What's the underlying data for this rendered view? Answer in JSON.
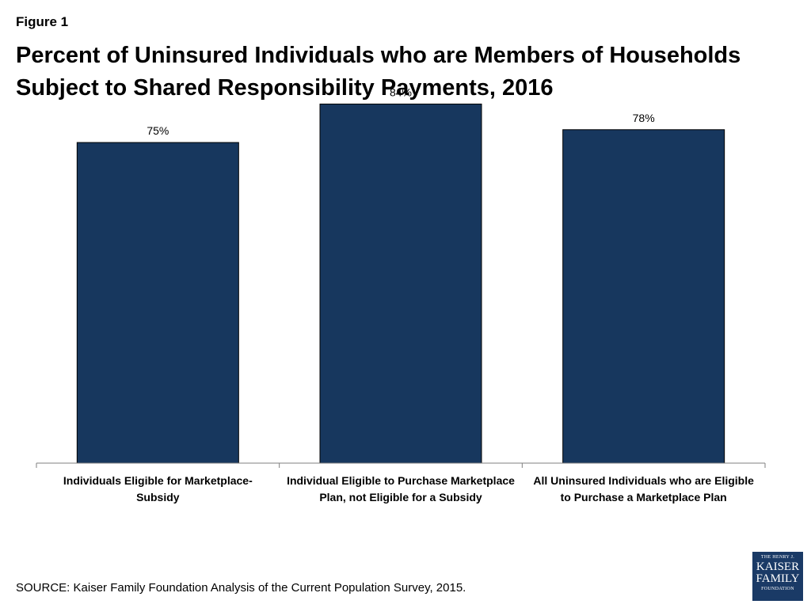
{
  "figure_label": "Figure 1",
  "title": {
    "line1": "Percent of Uninsured Individuals who are Members of Households",
    "line2": "Subject to Shared Responsibility Payments, 2016"
  },
  "source": "SOURCE:  Kaiser Family Foundation Analysis of the Current Population Survey, 2015.",
  "logo": {
    "line1": "THE HENRY J.",
    "line2": "KAISER",
    "line3": "FAMILY",
    "line4": "FOUNDATION"
  },
  "colors": {
    "bar": "#17375e",
    "bar_border": "#000000",
    "axis": "#7f7f7f",
    "logo_bg": "#1a3a66"
  },
  "chart_data": {
    "type": "bar",
    "title": "Percent of Uninsured Individuals who are Members of Households Subject to Shared Responsibility Payments, 2016",
    "categories": [
      [
        "Individuals Eligible for Marketplace-",
        "Subsidy"
      ],
      [
        "Individual Eligible to Purchase Marketplace",
        "Plan, not Eligible for a Subsidy"
      ],
      [
        "All Uninsured Individuals who are Eligible",
        "to Purchase  a Marketplace Plan"
      ]
    ],
    "values": [
      75,
      84,
      78
    ],
    "value_labels": [
      "75%",
      "84%",
      "78%"
    ],
    "ylim": [
      0,
      100
    ],
    "xlabel": "",
    "ylabel": "",
    "grid": false,
    "legend": "none"
  }
}
